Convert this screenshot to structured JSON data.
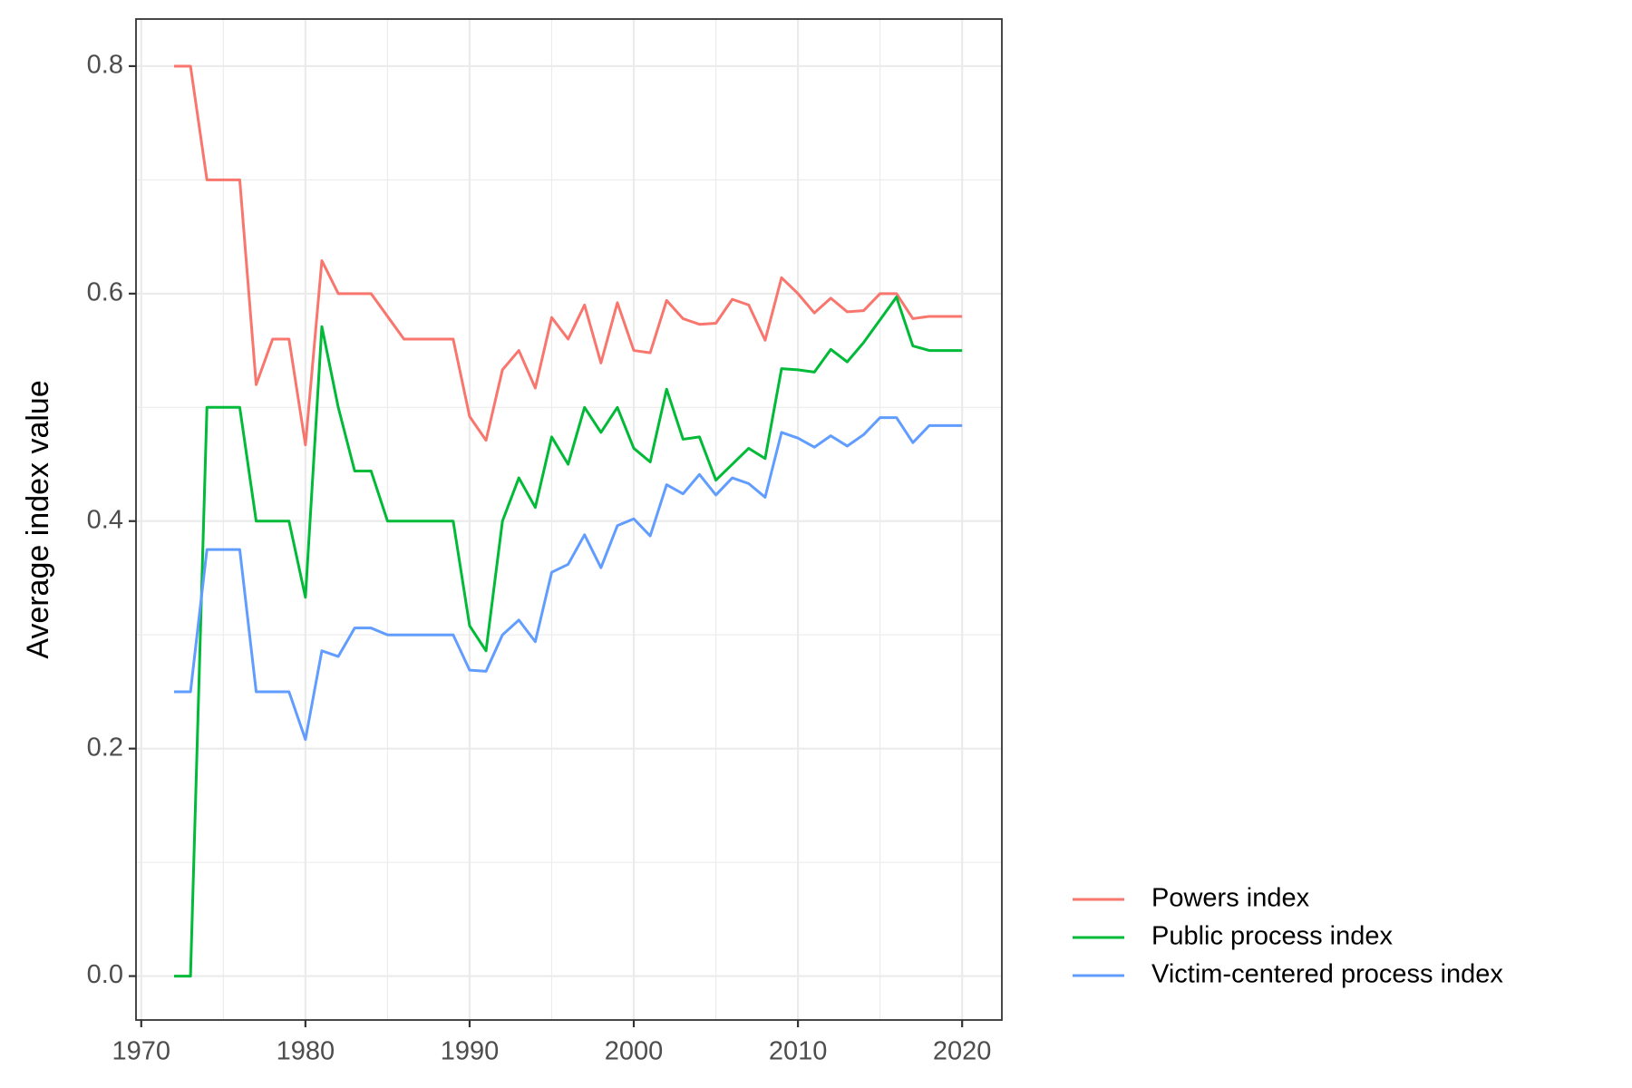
{
  "chart_data": {
    "type": "line",
    "y_label": "Average index value",
    "x": [
      1972,
      1973,
      1974,
      1975,
      1976,
      1977,
      1978,
      1979,
      1980,
      1981,
      1982,
      1983,
      1984,
      1985,
      1986,
      1987,
      1988,
      1989,
      1990,
      1991,
      1992,
      1993,
      1994,
      1995,
      1996,
      1997,
      1998,
      1999,
      2000,
      2001,
      2002,
      2003,
      2004,
      2005,
      2006,
      2007,
      2008,
      2009,
      2010,
      2011,
      2012,
      2013,
      2014,
      2015,
      2016,
      2017,
      2018,
      2019,
      2020
    ],
    "series": [
      {
        "name": "Powers index",
        "color": "#f8766d",
        "values": [
          0.8,
          0.8,
          0.7,
          0.7,
          0.7,
          0.52,
          0.56,
          0.56,
          0.467,
          0.629,
          0.6,
          0.6,
          0.6,
          0.58,
          0.56,
          0.56,
          0.56,
          0.56,
          0.492,
          0.471,
          0.533,
          0.55,
          0.517,
          0.579,
          0.56,
          0.59,
          0.539,
          0.592,
          0.55,
          0.548,
          0.594,
          0.578,
          0.573,
          0.574,
          0.595,
          0.59,
          0.559,
          0.614,
          0.6,
          0.583,
          0.596,
          0.584,
          0.585,
          0.6,
          0.6,
          0.578,
          0.58,
          0.58,
          0.58
        ]
      },
      {
        "name": "Public process index",
        "color": "#00ba38",
        "values": [
          0,
          0,
          0.5,
          0.5,
          0.5,
          0.4,
          0.4,
          0.4,
          0.333,
          0.571,
          0.5,
          0.444,
          0.444,
          0.4,
          0.4,
          0.4,
          0.4,
          0.4,
          0.308,
          0.286,
          0.4,
          0.438,
          0.412,
          0.474,
          0.45,
          0.5,
          0.478,
          0.5,
          0.464,
          0.452,
          0.516,
          0.472,
          0.474,
          0.436,
          0.45,
          0.464,
          0.455,
          0.534,
          0.533,
          0.531,
          0.551,
          0.54,
          0.557,
          0.577,
          0.597,
          0.554,
          0.55,
          0.55,
          0.55
        ]
      },
      {
        "name": "Victim-centered process index",
        "color": "#619cff",
        "values": [
          0.25,
          0.25,
          0.375,
          0.375,
          0.375,
          0.25,
          0.25,
          0.25,
          0.208,
          0.286,
          0.281,
          0.306,
          0.306,
          0.3,
          0.3,
          0.3,
          0.3,
          0.3,
          0.269,
          0.268,
          0.3,
          0.313,
          0.294,
          0.355,
          0.362,
          0.388,
          0.359,
          0.396,
          0.402,
          0.387,
          0.432,
          0.424,
          0.441,
          0.423,
          0.438,
          0.433,
          0.421,
          0.478,
          0.473,
          0.465,
          0.475,
          0.466,
          0.476,
          0.491,
          0.491,
          0.469,
          0.484,
          0.484,
          0.484
        ]
      }
    ],
    "xlim": [
      1969.68,
      2022.42
    ],
    "xticks": [
      1970,
      1980,
      1990,
      2000,
      2010,
      2020
    ],
    "ylim": [
      -0.0386,
      0.8414
    ],
    "yticks": [
      {
        "value": 0,
        "label": "0.0"
      },
      0.2,
      0.4,
      0.6,
      0.8
    ],
    "grid": true,
    "legend": "right"
  }
}
